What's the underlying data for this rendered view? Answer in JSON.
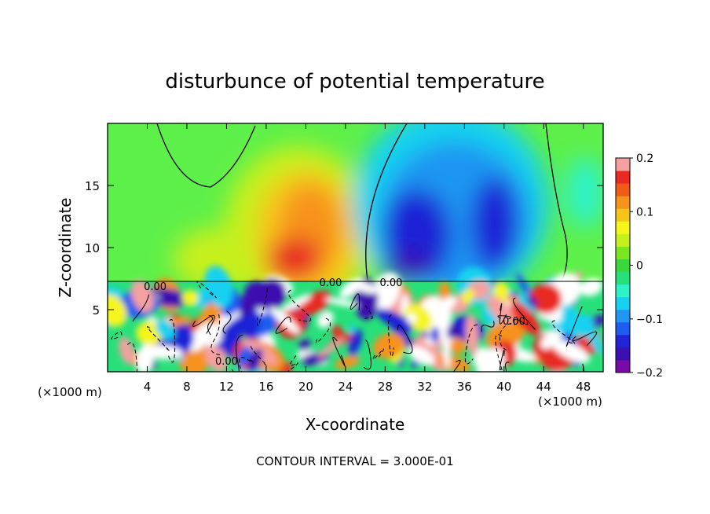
{
  "chart_data": {
    "type": "heatmap",
    "title": "disturbunce of potential temperature",
    "xlabel": "X-coordinate",
    "ylabel": "Z-coordinate",
    "x_unit_left": "(×1000 m)",
    "x_unit_right": "(×1000 m)",
    "xlim": [
      0,
      50
    ],
    "ylim": [
      0,
      20
    ],
    "x_ticks": [
      4,
      8,
      12,
      16,
      20,
      24,
      28,
      32,
      36,
      40,
      44,
      48
    ],
    "y_ticks": [
      5,
      10,
      15
    ],
    "colorbar": {
      "min": -0.2,
      "max": 0.2,
      "tick_values": [
        0.2,
        0.1,
        0,
        -0.1,
        -0.2
      ],
      "tick_labels": [
        "0.2",
        "0.1",
        "0",
        "−0.1",
        "−0.2"
      ],
      "colors": [
        "#7a0aa8",
        "#3c10b0",
        "#1f24d6",
        "#1e5cf0",
        "#1e96f2",
        "#16d2f0",
        "#2ef2c8",
        "#27e07a",
        "#3ad83a",
        "#7be51f",
        "#c6f01a",
        "#f5f51a",
        "#f7c41a",
        "#f7921a",
        "#f25a1a",
        "#e82a22",
        "#f5a0a0"
      ]
    },
    "contour_labels": [
      {
        "text": "0.00",
        "x": 4.8,
        "y": 6.9
      },
      {
        "text": "0.00",
        "x": 22.5,
        "y": 7.2
      },
      {
        "text": "0.00",
        "x": 28.6,
        "y": 7.2
      },
      {
        "text": "0.00",
        "x": 12.0,
        "y": 0.9
      },
      {
        "text": "0.00",
        "x": 41.0,
        "y": 4.1
      }
    ],
    "contour_interval_text": "CONTOUR INTERVAL = 3.000E-01"
  }
}
